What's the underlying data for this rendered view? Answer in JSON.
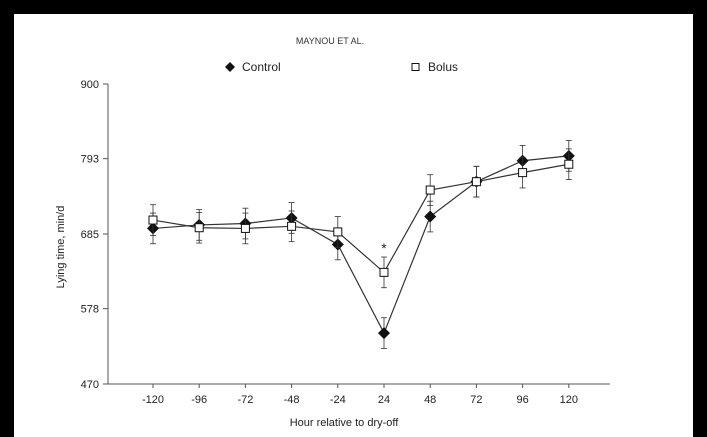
{
  "header": {
    "running_head": "MAYNOU ET AL."
  },
  "colors": {
    "marker": "#111111",
    "line": "#333333",
    "axis": "#555555"
  },
  "chart_data": {
    "type": "line",
    "x": [
      -120,
      -96,
      -72,
      -48,
      -24,
      24,
      48,
      72,
      96,
      120
    ],
    "x_tick_labels": [
      "-120",
      "-96",
      "-72",
      "-48",
      "-24",
      "24",
      "48",
      "72",
      "96",
      "120"
    ],
    "xlabel": "Hour relative to dry-off",
    "ylabel": "Lying time, min/d",
    "ylim": [
      470,
      900
    ],
    "y_ticks": [
      470,
      578,
      685,
      793,
      900
    ],
    "y_tick_labels": [
      "470",
      "578",
      "685",
      "793",
      "900"
    ],
    "grid": false,
    "legend_position": "top",
    "series": [
      {
        "name": "Control",
        "marker": "filled-diamond",
        "values": [
          693,
          698,
          700,
          708,
          670,
          543,
          710,
          760,
          790,
          797
        ],
        "error": [
          22,
          22,
          22,
          22,
          22,
          22,
          22,
          22,
          22,
          22
        ]
      },
      {
        "name": "Bolus",
        "marker": "open-square",
        "values": [
          705,
          694,
          693,
          696,
          688,
          630,
          748,
          760,
          773,
          785
        ],
        "error": [
          22,
          22,
          22,
          22,
          22,
          22,
          22,
          22,
          22,
          22
        ]
      }
    ],
    "annotations": [
      {
        "x": 24,
        "text": "*"
      }
    ]
  }
}
